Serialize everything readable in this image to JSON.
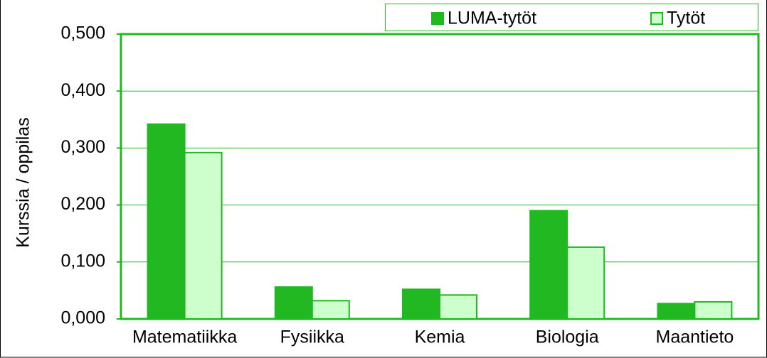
{
  "chart_data": {
    "type": "bar",
    "ylabel": "Kurssia / oppilas",
    "categories": [
      "Matematiikka",
      "Fysiikka",
      "Kemia",
      "Biologia",
      "Maantieto"
    ],
    "series": [
      {
        "name": "LUMA-tytöt",
        "color": "#22b822",
        "values": [
          0.342,
          0.056,
          0.052,
          0.19,
          0.027
        ]
      },
      {
        "name": "Tytöt",
        "color": "#ccffcc",
        "values": [
          0.292,
          0.032,
          0.042,
          0.126,
          0.03
        ]
      }
    ],
    "ylim": [
      0,
      0.5
    ],
    "yticks": [
      {
        "value": 0,
        "label": "0,000"
      },
      {
        "value": 0.1,
        "label": "0,100"
      },
      {
        "value": 0.2,
        "label": "0,200"
      },
      {
        "value": 0.3,
        "label": "0,300"
      },
      {
        "value": 0.4,
        "label": "0,400"
      },
      {
        "value": 0.5,
        "label": "0,500"
      }
    ],
    "grid": true,
    "legend": "top-right"
  }
}
